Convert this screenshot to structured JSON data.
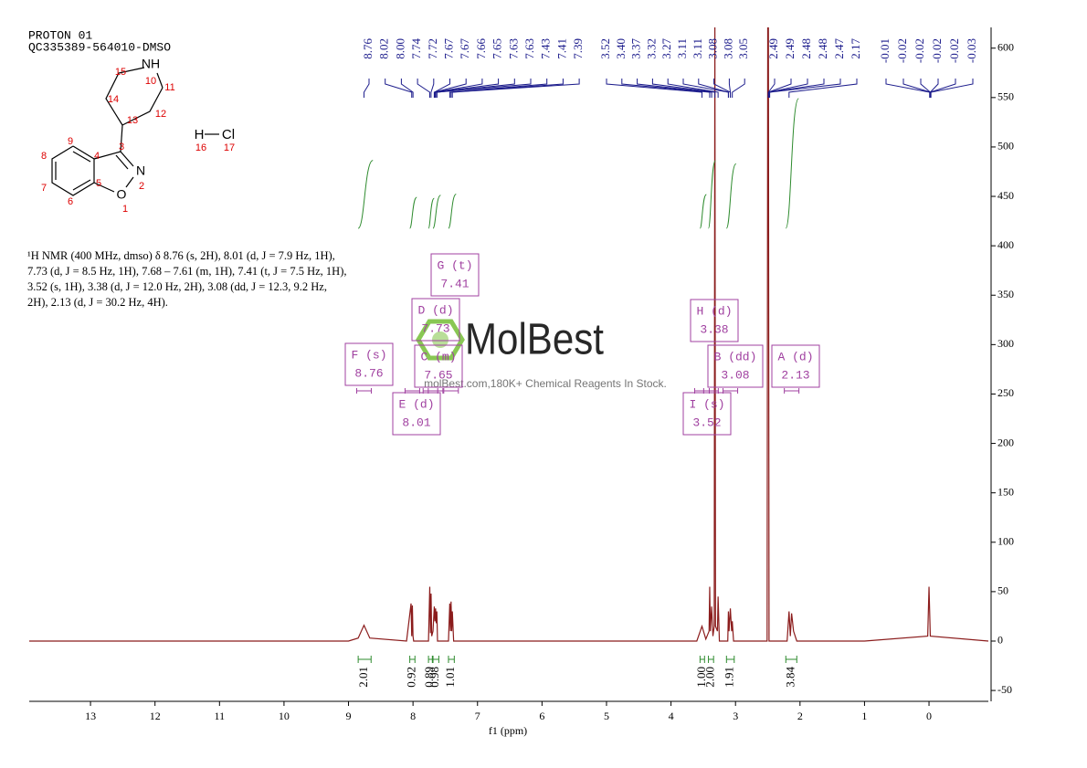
{
  "chart_data": {
    "type": "nmr",
    "title": "PROTON 01",
    "subtitle": "QC335389-564010-DMSO",
    "description": "¹H NMR (400 MHz, dmso) δ 8.76 (s, 2H), 8.01 (d, J = 7.9 Hz, 1H), 7.73 (d, J = 8.5 Hz, 1H), 7.68 – 7.61 (m, 1H), 7.41 (t, J = 7.5 Hz, 1H), 3.52 (s, 1H), 3.38 (d, J = 12.0 Hz, 2H), 3.08 (dd, J = 12.3, 9.2 Hz, 2H), 2.13 (d, J = 30.2 Hz, 4H).",
    "x_label": "f1 (ppm)",
    "watermark": "MolBest",
    "watermark_sub": "molBest.com,180K+ Chemical Reagents In Stock.",
    "molecule": {
      "atoms": [
        "NH",
        "15",
        "10",
        "14",
        "11",
        "13",
        "12",
        "9",
        "3",
        "4",
        "8",
        "7",
        "5",
        "6",
        "N",
        "2",
        "O",
        "1",
        "H",
        "Cl",
        "16",
        "17"
      ]
    },
    "xlim": [
      13.95,
      -0.92
    ],
    "xticks": [
      13,
      12,
      11,
      10,
      9,
      8,
      7,
      6,
      5,
      4,
      3,
      2,
      1,
      0
    ],
    "ylim": [
      -61,
      621
    ],
    "yticks": [
      -50,
      0,
      50,
      100,
      150,
      200,
      250,
      300,
      350,
      400,
      450,
      500,
      550,
      600
    ],
    "color": "#8b1c1c",
    "x": [
      13.95,
      9.0,
      8.85,
      8.76,
      8.67,
      8.1,
      8.03,
      8.02,
      8.01,
      8.0,
      7.99,
      7.76,
      7.74,
      7.73,
      7.72,
      7.71,
      7.69,
      7.67,
      7.66,
      7.65,
      7.64,
      7.63,
      7.62,
      7.45,
      7.43,
      7.42,
      7.41,
      7.4,
      7.39,
      7.37,
      3.6,
      3.52,
      3.46,
      3.41,
      3.4,
      3.39,
      3.37,
      3.35,
      3.33,
      3.32,
      3.31,
      3.28,
      3.27,
      3.25,
      3.12,
      3.11,
      3.1,
      3.08,
      3.06,
      3.05,
      3.03,
      2.51,
      2.5,
      2.49,
      2.48,
      2.2,
      2.17,
      2.15,
      2.13,
      2.1,
      2.05,
      1.0,
      0.02,
      0.0,
      -0.02,
      -0.92
    ],
    "values": [
      0,
      0,
      3,
      16,
      3,
      0,
      38,
      5,
      36,
      5,
      0,
      0,
      55,
      8,
      48,
      5,
      10,
      35,
      20,
      33,
      18,
      30,
      0,
      0,
      38,
      10,
      40,
      10,
      30,
      0,
      0,
      15,
      2,
      10,
      55,
      10,
      35,
      5,
      15,
      640,
      15,
      10,
      45,
      0,
      0,
      30,
      10,
      33,
      10,
      20,
      0,
      0,
      640,
      640,
      0,
      0,
      30,
      5,
      28,
      10,
      0,
      0,
      5,
      55,
      5,
      0
    ],
    "peak_labels": [
      [
        "8.76",
        "8.02",
        "8.00",
        "7.74",
        "7.72",
        "7.67",
        "7.67",
        "7.66",
        "7.65",
        "7.63",
        "7.63",
        "7.43",
        "7.41",
        "7.39"
      ],
      [
        "3.52",
        "3.40",
        "3.37",
        "3.32",
        "3.27",
        "3.11",
        "3.11",
        "3.08",
        "3.08",
        "3.05"
      ],
      [
        "2.49",
        "2.49",
        "2.48",
        "2.48",
        "2.47",
        "2.17"
      ],
      [
        "-0.01",
        "-0.02",
        "-0.02",
        "-0.02",
        "-0.02",
        "-0.03"
      ]
    ],
    "integrals": [
      {
        "from": 8.85,
        "to": 8.65,
        "label": "2.01"
      },
      {
        "from": 8.05,
        "to": 7.97,
        "label": "0.92"
      },
      {
        "from": 7.76,
        "to": 7.7,
        "label": "0.89"
      },
      {
        "from": 7.69,
        "to": 7.6,
        "label": "0.98"
      },
      {
        "from": 7.45,
        "to": 7.36,
        "label": "1.01"
      },
      {
        "from": 3.55,
        "to": 3.48,
        "label": "1.00"
      },
      {
        "from": 3.42,
        "to": 3.34,
        "label": "2.00"
      },
      {
        "from": 3.14,
        "to": 3.02,
        "label": "1.91"
      },
      {
        "from": 2.22,
        "to": 2.05,
        "label": "3.84"
      }
    ],
    "multiplets": [
      {
        "label": "F (s)",
        "shift": 8.76
      },
      {
        "label": "G (t)",
        "shift": 7.41
      },
      {
        "label": "D (d)",
        "shift": 7.73
      },
      {
        "label": "C (m)",
        "shift": 7.65
      },
      {
        "label": "E (d)",
        "shift": 8.01
      },
      {
        "label": "H (d)",
        "shift": 3.38
      },
      {
        "label": "B (dd)",
        "shift": 3.08
      },
      {
        "label": "A (d)",
        "shift": 2.13
      },
      {
        "label": "I (s)",
        "shift": 3.52
      }
    ]
  }
}
